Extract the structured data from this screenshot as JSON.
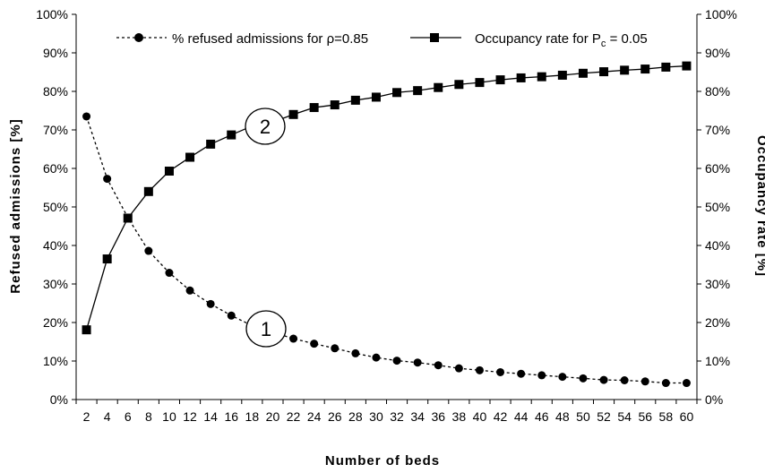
{
  "chart_data": {
    "type": "line",
    "xlabel": "Number of beds",
    "ylabel_left": "Refused admissions [%]",
    "ylabel_right": "Occupancy rate [%]",
    "x": [
      2,
      4,
      6,
      8,
      10,
      12,
      14,
      16,
      18,
      20,
      22,
      24,
      26,
      28,
      30,
      32,
      34,
      36,
      38,
      40,
      42,
      44,
      46,
      48,
      50,
      52,
      54,
      56,
      58,
      60
    ],
    "ylim": [
      0,
      100
    ],
    "y_ticks": [
      "0%",
      "10%",
      "20%",
      "30%",
      "40%",
      "50%",
      "60%",
      "70%",
      "80%",
      "90%",
      "100%"
    ],
    "x_ticks": [
      "2",
      "4",
      "6",
      "8",
      "10",
      "12",
      "14",
      "16",
      "18",
      "20",
      "22",
      "24",
      "26",
      "28",
      "30",
      "32",
      "34",
      "36",
      "38",
      "40",
      "42",
      "44",
      "46",
      "48",
      "50",
      "52",
      "54",
      "56",
      "58",
      "60"
    ],
    "grid": false,
    "legend_position": "top",
    "series": [
      {
        "name": "% refused admissions for ρ=0.85",
        "label": "1",
        "marker": "circle",
        "line": "dashed",
        "values": [
          73.5,
          57.3,
          47.2,
          38.6,
          32.9,
          28.3,
          24.8,
          21.8,
          19.2,
          17.5,
          15.8,
          14.5,
          13.3,
          12.0,
          10.9,
          10.1,
          9.6,
          8.9,
          8.1,
          7.6,
          7.1,
          6.7,
          6.3,
          5.9,
          5.5,
          5.1,
          5.0,
          4.7,
          4.3,
          4.3
        ]
      },
      {
        "name": "Occupancy rate for P",
        "name_subscript": "c",
        "name_suffix": " = 0.05",
        "label": "2",
        "marker": "square",
        "line": "solid",
        "values": [
          18.1,
          36.5,
          47.1,
          54.0,
          59.3,
          62.9,
          66.3,
          68.7,
          71.0,
          72.0,
          74.0,
          75.8,
          76.5,
          77.7,
          78.5,
          79.7,
          80.2,
          81.0,
          81.8,
          82.3,
          83.0,
          83.5,
          83.8,
          84.2,
          84.7,
          85.1,
          85.5,
          85.8,
          86.3,
          86.6
        ]
      }
    ]
  }
}
